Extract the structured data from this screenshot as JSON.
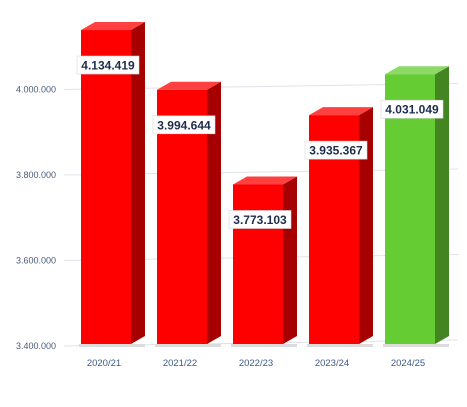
{
  "chart_data": {
    "type": "bar",
    "categories": [
      "2020/21",
      "2021/22",
      "2022/23",
      "2023/24",
      "2024/25"
    ],
    "values": [
      4134419,
      3994644,
      3773103,
      3935367,
      4031049
    ],
    "value_labels": [
      "4.134.419",
      "3.994.644",
      "3.773.103",
      "3.935.367",
      "4.031.049"
    ],
    "ylim": [
      3400000,
      4200000
    ],
    "y_ticks": [
      3400000,
      3600000,
      3800000,
      4000000
    ],
    "y_tick_labels": [
      "3.400.000",
      "3.600.000",
      "3.800.000",
      "4.000.000"
    ],
    "grid": true,
    "bar_colors": [
      "#ff0000",
      "#ff0000",
      "#ff0000",
      "#ff0000",
      "#66cc33"
    ],
    "title": "",
    "xlabel": "",
    "ylabel": ""
  }
}
